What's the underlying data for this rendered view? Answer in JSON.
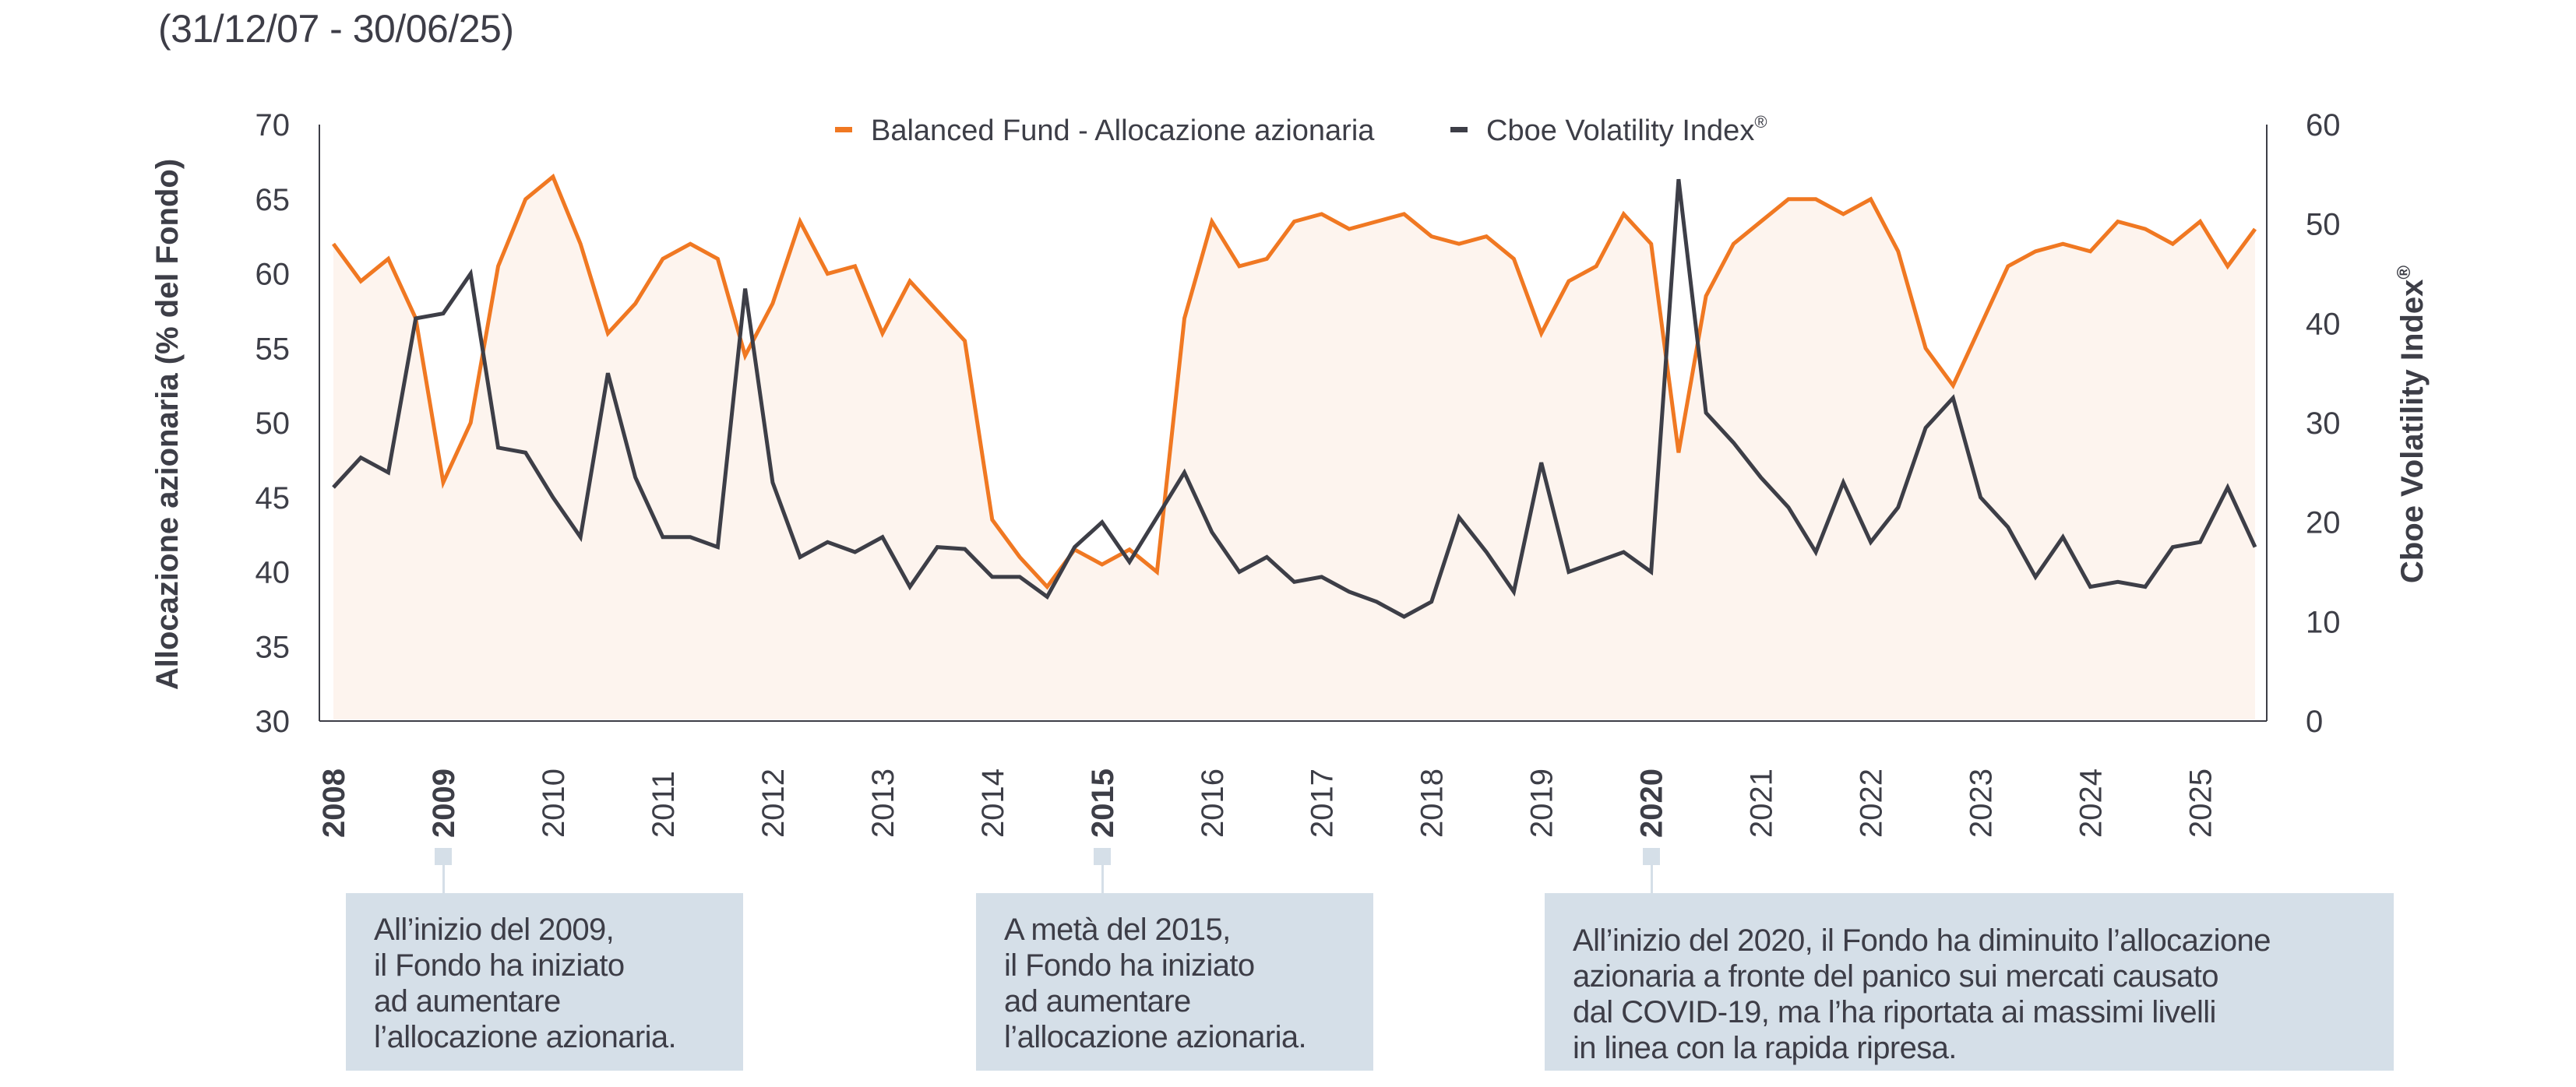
{
  "header": {
    "subtitle": "(31/12/07 - 30/06/25)"
  },
  "colors": {
    "fund": "#f07822",
    "vix": "#3d3e47",
    "area_fill": "#fdf4ee",
    "annotation_bg": "#d5dfe8",
    "axis": "#3d3e47"
  },
  "chart_data": {
    "type": "line",
    "title": "",
    "xlabel": "",
    "ylabel": "Allocazione azionaria (% del Fondo)",
    "ylabel_right": "Cboe Volatility Index®",
    "ylim": [
      30,
      70
    ],
    "ylim_right": [
      0,
      60
    ],
    "yticks": [
      "30",
      "35",
      "40",
      "45",
      "50",
      "55",
      "60",
      "65",
      "70"
    ],
    "yticks_right": [
      "0",
      "10",
      "20",
      "30",
      "40",
      "50",
      "60"
    ],
    "grid": false,
    "legend_position": "top-center",
    "x_start": "Q4 2007",
    "x_frequency": "quarterly",
    "x_ticks": [
      {
        "label": "2008",
        "bold": true
      },
      {
        "label": "2009",
        "bold": true
      },
      {
        "label": "2010",
        "bold": false
      },
      {
        "label": "2011",
        "bold": false
      },
      {
        "label": "2012",
        "bold": false
      },
      {
        "label": "2013",
        "bold": false
      },
      {
        "label": "2014",
        "bold": false
      },
      {
        "label": "2015",
        "bold": true
      },
      {
        "label": "2016",
        "bold": false
      },
      {
        "label": "2017",
        "bold": false
      },
      {
        "label": "2018",
        "bold": false
      },
      {
        "label": "2019",
        "bold": false
      },
      {
        "label": "2020",
        "bold": true
      },
      {
        "label": "2021",
        "bold": false
      },
      {
        "label": "2022",
        "bold": false
      },
      {
        "label": "2023",
        "bold": false
      },
      {
        "label": "2024",
        "bold": false
      },
      {
        "label": "2025",
        "bold": false
      }
    ],
    "series": [
      {
        "name": "Balanced Fund - Allocazione azionaria",
        "axis": "left",
        "area": true,
        "values": [
          62,
          59.5,
          61,
          57,
          46,
          50,
          60.5,
          65,
          66.5,
          62,
          56,
          58,
          61,
          62,
          61,
          54.5,
          58,
          63.5,
          60,
          60.5,
          56,
          59.5,
          57.5,
          55.5,
          43.5,
          41,
          39,
          41.5,
          40.5,
          41.5,
          40,
          57,
          63.5,
          60.5,
          61,
          63.5,
          64,
          63,
          63.5,
          64,
          62.5,
          62,
          62.5,
          61,
          56,
          59.5,
          60.5,
          64,
          62,
          48,
          58.5,
          62,
          63.5,
          65,
          65,
          64,
          65,
          61.5,
          55,
          52.5,
          56.5,
          60.5,
          61.5,
          62,
          61.5,
          63.5,
          63,
          62,
          63.5,
          60.5,
          63
        ]
      },
      {
        "name": "Cboe Volatility Index®",
        "axis": "right",
        "area": false,
        "values": [
          23.5,
          26.5,
          25,
          40.5,
          41,
          45,
          27.5,
          27,
          22.5,
          18.5,
          35,
          24.5,
          18.5,
          18.5,
          17.5,
          43.5,
          24,
          16.5,
          18,
          17,
          18.5,
          13.5,
          17.5,
          17.3,
          14.5,
          14.5,
          12.5,
          17.5,
          20,
          16,
          20.5,
          25,
          19,
          15,
          16.5,
          14,
          14.5,
          13,
          12,
          10.5,
          12,
          20.5,
          17,
          13,
          26,
          15,
          16,
          17,
          15,
          54.5,
          31,
          28,
          24.5,
          21.5,
          17,
          24,
          18,
          21.5,
          29.5,
          32.5,
          22.5,
          19.5,
          14.5,
          18.5,
          13.5,
          14,
          13.5,
          17.5,
          18,
          23.5,
          17.5
        ]
      }
    ]
  },
  "legend": {
    "fund_label": "Balanced Fund - Allocazione azionaria",
    "vix_label": "Cboe Volatility Index",
    "vix_sup": "®"
  },
  "annotations": [
    {
      "year": "2009",
      "text": "All’inizio del 2009,\nil Fondo ha iniziato\nad aumentare\nl’allocazione azionaria."
    },
    {
      "year": "2015",
      "text": "A metà del 2015,\nil Fondo ha iniziato\nad aumentare\nl’allocazione azionaria."
    },
    {
      "year": "2020",
      "text": "All’inizio del 2020, il Fondo ha diminuito l’allocazione\nazionaria a fronte del panico sui mercati causato\ndal COVID-19, ma l’ha riportata ai massimi livelli\nin linea con la rapida ripresa."
    }
  ]
}
